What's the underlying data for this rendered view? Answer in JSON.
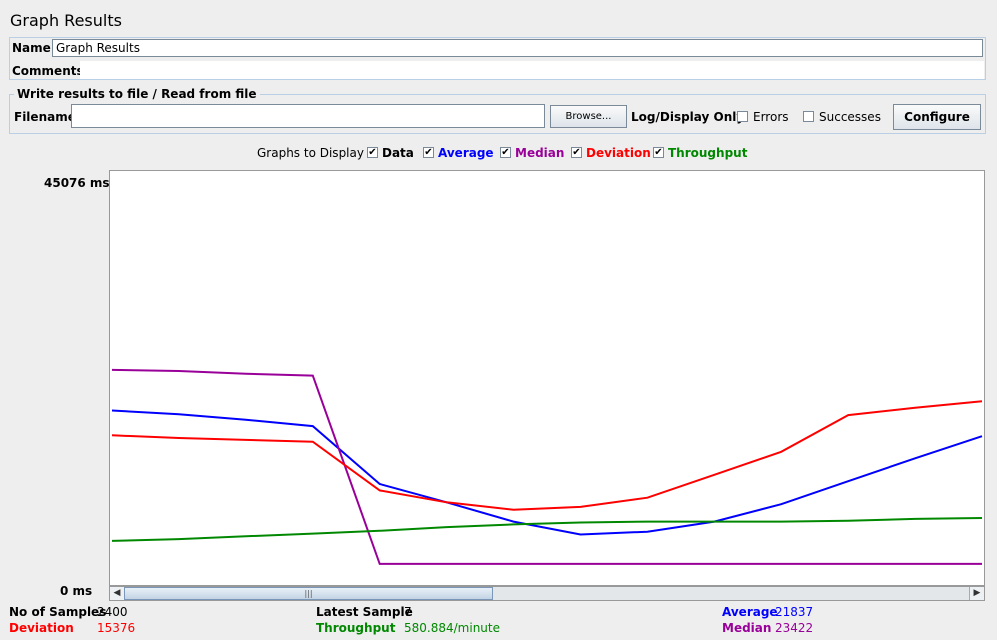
{
  "window": {
    "title": "Graph Results"
  },
  "name_field": {
    "label": "Name:",
    "value": "Graph Results"
  },
  "comments_field": {
    "label": "Comments:"
  },
  "file_section": {
    "legend": "Write results to file / Read from file",
    "filename_label": "Filename",
    "browse_label": "Browse...",
    "log_display_label": "Log/Display Only:",
    "errors_label": "Errors",
    "successes_label": "Successes",
    "configure_label": "Configure"
  },
  "graphs_to_display": {
    "label": "Graphs to Display",
    "items": [
      {
        "label": "Data",
        "checked": true,
        "color": "#000000"
      },
      {
        "label": "Average",
        "checked": true,
        "color": "#0000ff"
      },
      {
        "label": "Median",
        "checked": true,
        "color": "#990099"
      },
      {
        "label": "Deviation",
        "checked": true,
        "color": "#ff0000"
      },
      {
        "label": "Throughput",
        "checked": true,
        "color": "#008800"
      }
    ]
  },
  "y_axis": {
    "max_label": "45076  ms",
    "min_label": "0  ms"
  },
  "stats": {
    "samples_label": "No of Samples",
    "samples_value": "2400",
    "latest_label": "Latest Sample",
    "latest_value": "7",
    "average_label": "Average",
    "average_value": "21837",
    "deviation_label": "Deviation",
    "deviation_value": "15376",
    "throughput_label": "Throughput",
    "throughput_value": "580.884/minute",
    "median_label": "Median",
    "median_value": "23422"
  },
  "chart_data": {
    "type": "line",
    "ylim": [
      0,
      45076
    ],
    "series": [
      {
        "name": "Average",
        "color": "#0000ff",
        "values": [
          19000,
          18600,
          18000,
          17300,
          11000,
          9000,
          6900,
          5500,
          5800,
          6900,
          8800,
          11300,
          13800,
          16200
        ]
      },
      {
        "name": "Median",
        "color": "#990099",
        "values": [
          23422,
          23300,
          23000,
          22800,
          2300,
          2300,
          2300,
          2300,
          2300,
          2300,
          2300,
          2300,
          2300,
          2300
        ]
      },
      {
        "name": "Deviation",
        "color": "#ff0000",
        "values": [
          16300,
          16000,
          15800,
          15600,
          10300,
          9000,
          8200,
          8500,
          9500,
          12000,
          14500,
          18500,
          19300,
          20000
        ]
      },
      {
        "name": "Throughput",
        "color": "#008800",
        "values": [
          4800,
          5000,
          5300,
          5600,
          5900,
          6300,
          6600,
          6800,
          6900,
          6900,
          6900,
          7000,
          7200,
          7300
        ]
      }
    ]
  }
}
